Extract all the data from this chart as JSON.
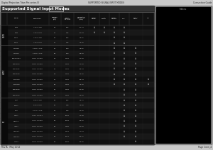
{
  "header_text": "Digital Projection Titan Pro series III",
  "center_header": "SUPPORTED SIGNAL INPUT MODES",
  "right_header": "Connection Guide",
  "title": "Supported Signal Input Modes",
  "footer_left": "Rev A   May 2012",
  "footer_right": "Page Conn_4",
  "page_bg": "#aaaaaa",
  "top_bar_bg": "#cccccc",
  "table_outer_bg": "#000000",
  "col_header_bg": "#1a1a1a",
  "row_odd_bg": "#111111",
  "row_even_bg": "#1e1e1e",
  "right_box_bg": "#000000",
  "right_box_border": "#888888",
  "row_groups": [
    {
      "group": "SDTV",
      "rows": [
        [
          "480i",
          "720 x 480",
          "60",
          "525",
          "15.73",
          1,
          1,
          1,
          1,
          0,
          0
        ],
        [
          "576i",
          "720 x 576",
          "50",
          "625",
          "15.63",
          1,
          1,
          1,
          1,
          0,
          0
        ],
        [
          "480p",
          "720 x 480",
          "60",
          "525",
          "31.51",
          0,
          0,
          1,
          1,
          0,
          0
        ],
        [
          "576p",
          "720 x 576",
          "50",
          "625",
          "31.25",
          0,
          0,
          1,
          1,
          0,
          0
        ]
      ]
    },
    {
      "group": "HDTV",
      "rows": [
        [
          "720p50",
          "1280 x 720",
          "50",
          "750",
          "37.51",
          0,
          0,
          1,
          1,
          1,
          0
        ],
        [
          "720p60",
          "1280 x 720",
          "60",
          "750",
          "45.00",
          0,
          0,
          1,
          1,
          1,
          0
        ],
        [
          "1080psf24",
          "1920 x 1080",
          "48",
          "1125",
          "27.00",
          0,
          0,
          1,
          1,
          1,
          0
        ],
        [
          "1080p24",
          "1920 x 1080",
          "24",
          "1125",
          "27.00",
          0,
          0,
          1,
          1,
          1,
          0
        ],
        [
          "1080p25",
          "1920 x 1080",
          "25",
          "1125",
          "28.13",
          0,
          0,
          1,
          1,
          1,
          0
        ],
        [
          "1080p30",
          "1920 x 1080",
          "30",
          "1125",
          "33.75",
          0,
          0,
          1,
          1,
          1,
          0
        ],
        [
          "1080i50",
          "1920 x 1080",
          "50",
          "1125",
          "28.13",
          0,
          0,
          1,
          1,
          1,
          1
        ],
        [
          "1080i60",
          "1920 x 1080",
          "60",
          "1125",
          "33.75",
          0,
          0,
          1,
          1,
          1,
          1
        ],
        [
          "1080p50",
          "1920 x 1080",
          "50",
          "1125",
          "56.25",
          0,
          0,
          0,
          1,
          1,
          0
        ],
        [
          "1080p60",
          "1920 x 1080",
          "60",
          "1125",
          "67.50",
          0,
          0,
          0,
          1,
          1,
          0
        ]
      ]
    },
    {
      "group": "PC",
      "rows": [
        [
          "VGA",
          "640 x 480",
          "60",
          "525",
          "31.47",
          0,
          0,
          0,
          1,
          1,
          0
        ],
        [
          "SVGA",
          "800 x 600",
          "60",
          "628",
          "37.88",
          0,
          0,
          0,
          1,
          1,
          0
        ],
        [
          "XGA",
          "1024 x 768",
          "60",
          "806",
          "48.36",
          0,
          0,
          0,
          1,
          1,
          0
        ],
        [
          "SXGA",
          "1280 x 1024",
          "60",
          "1066",
          "63.98",
          0,
          0,
          0,
          1,
          1,
          0
        ],
        [
          "SXGA+",
          "1400 x 1050",
          "60",
          "1089",
          "65.32",
          0,
          0,
          0,
          1,
          1,
          0
        ],
        [
          "UXGA",
          "1600 x 1200",
          "60",
          "1250",
          "75.00",
          0,
          0,
          0,
          1,
          1,
          0
        ],
        [
          "WUXGA",
          "1920 x 1200",
          "60",
          "1235",
          "74.04",
          0,
          0,
          0,
          1,
          1,
          0
        ],
        [
          "WQXGA",
          "2560 x 1600",
          "60",
          "1646",
          "98.71",
          0,
          0,
          0,
          1,
          1,
          0
        ],
        [
          "QXGA",
          "2048 x 1536",
          "60",
          "1592",
          "95.45",
          0,
          0,
          0,
          0,
          1,
          0
        ]
      ]
    }
  ]
}
